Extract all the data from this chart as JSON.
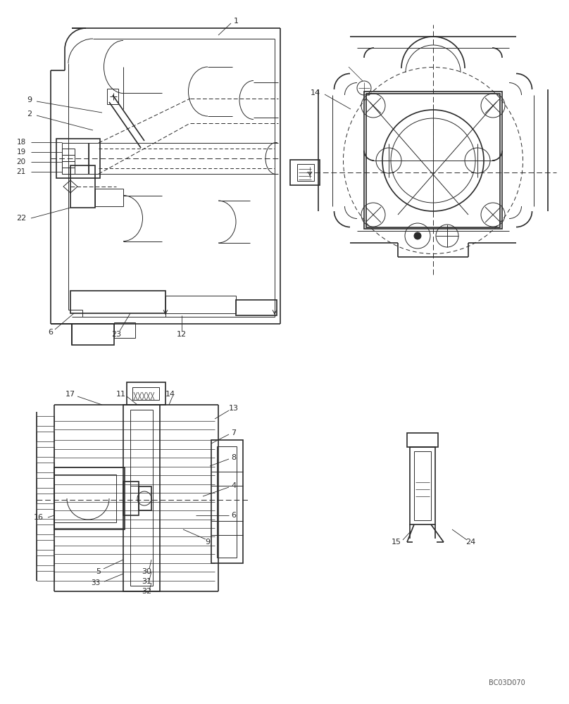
{
  "bg_color": "#ffffff",
  "line_color": "#2a2a2a",
  "font_size": 7.5,
  "watermark": "BC03D070"
}
